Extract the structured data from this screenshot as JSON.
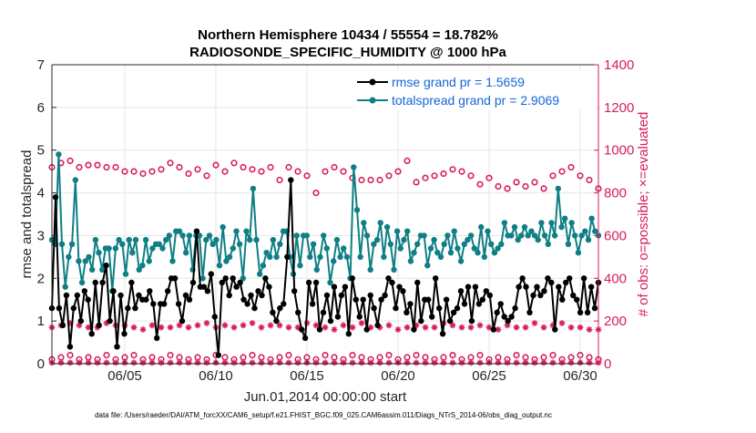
{
  "chart_data": {
    "type": "line",
    "title": "Northern Hemisphere 10434 / 55554 = 18.782%",
    "subtitle": "RADIOSONDE_SPECIFIC_HUMIDITY @ 1000 hPa",
    "xlabel": "Jun.01,2014 00:00:00 start",
    "ylabel_left": "rmse and totalspread",
    "ylabel_right": "# of obs: o=possible; ×=evaluated",
    "xlim": [
      1,
      31
    ],
    "ylim_left": [
      0,
      7
    ],
    "ylim_right": [
      0,
      1400
    ],
    "x_ticks": [
      {
        "x": 5,
        "label": "06/05"
      },
      {
        "x": 10,
        "label": "06/10"
      },
      {
        "x": 15,
        "label": "06/15"
      },
      {
        "x": 20,
        "label": "06/20"
      },
      {
        "x": 25,
        "label": "06/25"
      },
      {
        "x": 30,
        "label": "06/30"
      }
    ],
    "y_ticks_left": [
      "0",
      "1",
      "2",
      "3",
      "4",
      "5",
      "6",
      "7"
    ],
    "y_ticks_right": [
      "0",
      "200",
      "400",
      "600",
      "800",
      "1000",
      "1200",
      "1400"
    ],
    "colors": {
      "rmse": "#000000",
      "totalspread": "#0f7f85",
      "obs": "#d81b60",
      "legend_text": "#1565d8"
    },
    "series": [
      {
        "name": "rmse grand pr = 1.5659",
        "axis": "left",
        "style": "line-dots",
        "values": [
          1.3,
          3.9,
          1.3,
          0.9,
          1.6,
          0.4,
          1.3,
          1.6,
          1.0,
          1.7,
          1.5,
          0.7,
          1.9,
          0.9,
          1.9,
          2.3,
          1.0,
          1.7,
          0.4,
          1.6,
          0.7,
          1.3,
          1.9,
          1.3,
          1.6,
          1.5,
          1.5,
          1.7,
          1.4,
          0.6,
          1.4,
          1.4,
          1.7,
          2.0,
          2.0,
          1.4,
          1.0,
          1.6,
          1.5,
          1.9,
          3.1,
          1.8,
          1.8,
          1.7,
          2.1,
          1.1,
          0.2,
          1.9,
          2.0,
          1.6,
          2.0,
          1.8,
          1.9,
          1.5,
          1.4,
          1.6,
          1.3,
          1.7,
          1.6,
          2.0,
          1.8,
          1.2,
          1.0,
          1.3,
          1.4,
          2.5,
          4.3,
          1.7,
          1.2,
          0.8,
          0.6,
          1.9,
          1.4,
          1.9,
          0.8,
          1.2,
          1.6,
          1.0,
          1.8,
          1.1,
          1.6,
          1.8,
          0.7,
          2.0,
          1.5,
          1.1,
          1.5,
          0.8,
          1.6,
          1.3,
          0.9,
          1.5,
          1.6,
          2.0,
          1.9,
          1.3,
          1.8,
          1.7,
          1.2,
          1.4,
          0.8,
          1.9,
          1.0,
          1.5,
          1.5,
          1.1,
          2.0,
          1.3,
          0.7,
          1.5,
          1.0,
          1.2,
          1.3,
          1.7,
          1.4,
          1.8,
          1.0,
          1.8,
          1.4,
          1.5,
          1.7,
          1.6,
          0.8,
          1.2,
          1.4,
          1.1,
          1.0,
          1.1,
          1.3,
          1.8,
          2.0,
          1.8,
          1.2,
          1.6,
          1.8,
          1.6,
          1.7,
          2.0,
          1.9,
          0.8,
          1.8,
          1.5,
          1.9,
          2.0,
          1.6,
          1.5,
          1.2,
          2.0,
          1.2,
          1.8,
          1.3,
          1.9
        ]
      },
      {
        "name": "totalspread grand pr = 2.9069",
        "axis": "left",
        "style": "line-dots",
        "values": [
          2.9,
          2.8,
          4.9,
          2.8,
          1.8,
          2.5,
          2.8,
          4.3,
          2.4,
          1.9,
          2.4,
          2.5,
          2.2,
          2.9,
          2.6,
          2.2,
          2.7,
          2.7,
          1.7,
          2.7,
          2.9,
          2.8,
          2.1,
          2.9,
          2.6,
          2.9,
          2.2,
          2.3,
          2.9,
          2.4,
          2.7,
          2.8,
          2.8,
          2.7,
          2.9,
          3.0,
          2.4,
          3.1,
          3.1,
          3.0,
          2.6,
          3.0,
          2.2,
          3.0,
          3.0,
          2.0,
          2.9,
          3.0,
          2.8,
          2.9,
          2.3,
          3.2,
          2.4,
          2.5,
          2.7,
          3.1,
          2.8,
          2.0,
          3.1,
          2.9,
          4.1,
          2.9,
          2.1,
          2.3,
          2.6,
          2.5,
          2.9,
          2.5,
          2.8,
          3.1,
          3.1,
          2.5,
          2.1,
          3.0,
          2.3,
          3.0,
          3.0,
          2.5,
          2.8,
          2.2,
          2.5,
          3.0,
          2.7,
          1.9,
          2.4,
          2.9,
          2.5,
          2.7,
          2.5,
          2.0,
          4.6,
          3.6,
          2.5,
          3.3,
          3.0,
          2.2,
          2.8,
          2.9,
          3.3,
          2.5,
          3.2,
          2.8,
          2.2,
          3.1,
          2.7,
          2.9,
          3.1,
          2.4,
          2.6,
          2.8,
          3.0,
          3.0,
          2.3,
          2.7,
          2.9,
          2.6,
          2.5,
          2.8,
          3.0,
          2.6,
          3.1,
          2.7,
          2.4,
          2.8,
          2.9,
          3.0,
          2.7,
          2.6,
          3.2,
          2.5,
          3.1,
          2.8,
          2.6,
          2.7,
          2.8,
          3.3,
          3.0,
          3.0,
          3.2,
          2.9,
          3.0,
          3.2,
          3.0,
          3.1,
          3.0,
          2.9,
          3.3,
          3.0,
          2.8,
          3.3,
          3.0,
          4.1,
          3.2,
          3.4,
          2.8,
          3.3,
          3.0,
          2.6,
          3.0,
          3.1,
          2.9,
          3.4,
          3.1,
          3.0
        ]
      },
      {
        "name": "obs possible",
        "axis": "right",
        "style": "circles",
        "values_00z": [
          920,
          940,
          950,
          920,
          930,
          930,
          920,
          920,
          900,
          900,
          890,
          900,
          910,
          940,
          920,
          890,
          910,
          880,
          930,
          900,
          940,
          920,
          910,
          900,
          920,
          860,
          920,
          900,
          880,
          800,
          900,
          920,
          900,
          870,
          860,
          860,
          860,
          880,
          900,
          950,
          850,
          870,
          880,
          890,
          910,
          900,
          880,
          840,
          870,
          830,
          820,
          850,
          830,
          850,
          820,
          880,
          900,
          920,
          880,
          860,
          820
        ],
        "values_12z": [
          20,
          30,
          40,
          20,
          30,
          20,
          40,
          20,
          30,
          40,
          20,
          30,
          20,
          40,
          30,
          20,
          30,
          20,
          40,
          30,
          20,
          30,
          40,
          30,
          20,
          30,
          40,
          20,
          30,
          20,
          40,
          30,
          20,
          40,
          30,
          20,
          30,
          40,
          20,
          30,
          40,
          30,
          20,
          30,
          40,
          20,
          30,
          40,
          20,
          30,
          20,
          40,
          30,
          20,
          30,
          40,
          20,
          30,
          40,
          30,
          20
        ]
      },
      {
        "name": "obs evaluated",
        "axis": "right",
        "style": "asterisks",
        "values_00z": [
          170,
          180,
          190,
          180,
          170,
          170,
          190,
          180,
          180,
          170,
          160,
          180,
          170,
          170,
          180,
          170,
          180,
          190,
          170,
          180,
          170,
          180,
          190,
          170,
          180,
          180,
          170,
          170,
          190,
          180,
          170,
          160,
          180,
          170,
          190,
          170,
          170,
          180,
          160,
          170,
          180,
          170,
          170,
          190,
          180,
          170,
          170,
          180,
          170,
          160,
          180,
          170,
          170,
          190,
          170,
          180,
          190,
          170,
          170,
          160,
          160
        ],
        "values_12z": [
          5,
          5,
          5,
          5,
          5,
          5,
          5,
          5,
          5,
          5,
          5,
          5,
          5,
          5,
          5,
          5,
          5,
          5,
          5,
          5,
          5,
          5,
          5,
          5,
          5,
          5,
          5,
          5,
          5,
          5,
          5,
          5,
          5,
          5,
          5,
          5,
          5,
          5,
          5,
          5,
          5,
          5,
          5,
          5,
          5,
          5,
          5,
          5,
          5,
          5,
          5,
          5,
          5,
          5,
          5,
          5,
          5,
          5,
          5,
          5,
          5
        ]
      }
    ],
    "legend": [
      {
        "label": "rmse grand pr = 1.5659",
        "color": "#000000"
      },
      {
        "label": "totalspread grand pr = 2.9069",
        "color": "#0f7f85"
      }
    ],
    "legend_position": "top-right",
    "footer": "data file: /Users/raeder/DAI/ATM_forcXX/CAM6_setup/f.e21.FHIST_BGC.f09_025.CAM6assim.011/Diags_NTrS_2014-06/obs_diag_output.nc"
  }
}
